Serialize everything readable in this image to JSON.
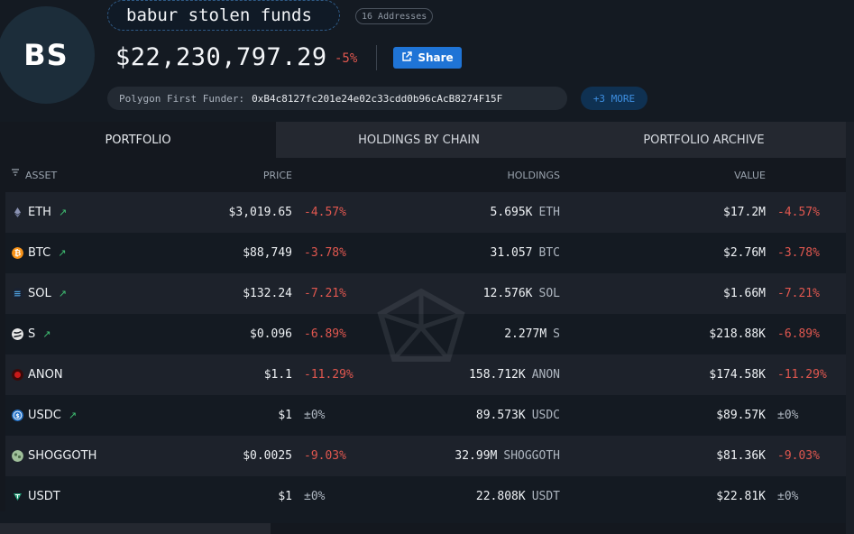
{
  "entity": {
    "avatar_initials": "BS",
    "name": "babur stolen funds",
    "address_count": "16 Addresses",
    "total_value": "$22,230,797.29",
    "total_change": "-5%",
    "share_label": "Share",
    "funder_label": "Polygon First Funder:",
    "funder_address": "0xB4c8127fc201e24e02c33cdd0b96cAcB8274F15F",
    "more_label": "+3 MORE"
  },
  "tabs": [
    "PORTFOLIO",
    "HOLDINGS BY CHAIN",
    "PORTFOLIO ARCHIVE"
  ],
  "columns": {
    "asset": "ASSET",
    "price": "PRICE",
    "holdings": "HOLDINGS",
    "value": "VALUE"
  },
  "assets": [
    {
      "symbol": "ETH",
      "price": "$3,019.65",
      "price_change": "-4.57%",
      "holdings": "5.695K",
      "holdings_symbol": "ETH",
      "value": "$17.2M",
      "value_change": "-4.57%",
      "icon": "eth-icon",
      "icon_color": "#8a92b2"
    },
    {
      "symbol": "BTC",
      "price": "$88,749",
      "price_change": "-3.78%",
      "holdings": "31.057",
      "holdings_symbol": "BTC",
      "value": "$2.76M",
      "value_change": "-3.78%",
      "icon": "btc-icon",
      "icon_color": "#f7931a"
    },
    {
      "symbol": "SOL",
      "price": "$132.24",
      "price_change": "-7.21%",
      "holdings": "12.576K",
      "holdings_symbol": "SOL",
      "value": "$1.66M",
      "value_change": "-7.21%",
      "icon": "sol-icon",
      "icon_color": "#4fa3e0"
    },
    {
      "symbol": "S",
      "price": "$0.096",
      "price_change": "-6.89%",
      "holdings": "2.277M",
      "holdings_symbol": "S",
      "value": "$218.88K",
      "value_change": "-6.89%",
      "icon": "sonic-icon",
      "icon_color": "#e8e8e8"
    },
    {
      "symbol": "ANON",
      "price": "$1.1",
      "price_change": "-11.29%",
      "holdings": "158.712K",
      "holdings_symbol": "ANON",
      "value": "$174.58K",
      "value_change": "-11.29%",
      "icon": "anon-icon",
      "icon_color": "#c91a1a"
    },
    {
      "symbol": "USDC",
      "price": "$1",
      "price_change": "±0%",
      "holdings": "89.573K",
      "holdings_symbol": "USDC",
      "value": "$89.57K",
      "value_change": "±0%",
      "icon": "usdc-icon",
      "icon_color": "#2775ca"
    },
    {
      "symbol": "SHOGGOTH",
      "price": "$0.0025",
      "price_change": "-9.03%",
      "holdings": "32.99M",
      "holdings_symbol": "SHOGGOTH",
      "value": "$81.36K",
      "value_change": "-9.03%",
      "icon": "shoggoth-icon",
      "icon_color": "#9fbf9a"
    },
    {
      "symbol": "USDT",
      "price": "$1",
      "price_change": "±0%",
      "holdings": "22.808K",
      "holdings_symbol": "USDT",
      "value": "$22.81K",
      "value_change": "±0%",
      "icon": "usdt-icon",
      "icon_color": "#26a17b"
    }
  ],
  "colors": {
    "negative": "#e0574f",
    "positive_trend": "#3fbf72",
    "accent": "#1f74d6"
  }
}
